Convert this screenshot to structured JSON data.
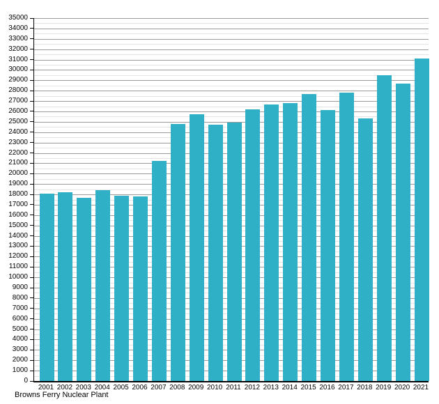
{
  "chart_data": {
    "type": "bar",
    "caption": "Browns Ferry Nuclear Plant",
    "categories": [
      "2001",
      "2002",
      "2003",
      "2004",
      "2005",
      "2006",
      "2007",
      "2008",
      "2009",
      "2010",
      "2011",
      "2012",
      "2013",
      "2014",
      "2015",
      "2016",
      "2017",
      "2018",
      "2019",
      "2020",
      "2021"
    ],
    "values": [
      18100,
      18200,
      17700,
      18400,
      17900,
      17800,
      21200,
      24800,
      25700,
      24700,
      24900,
      26200,
      26700,
      26800,
      27700,
      26100,
      27800,
      25300,
      29500,
      28700,
      31100
    ],
    "ylim": [
      0,
      35000
    ],
    "y_major_step": 1000,
    "y_minor_step": 500,
    "grid": true,
    "legend": "none",
    "bar_color": "#30B0C7",
    "major_grid_color": "#9a9a9a",
    "minor_grid_color": "#e3e3e3",
    "axis_color": "#000000",
    "background_color": "#ffffff"
  }
}
